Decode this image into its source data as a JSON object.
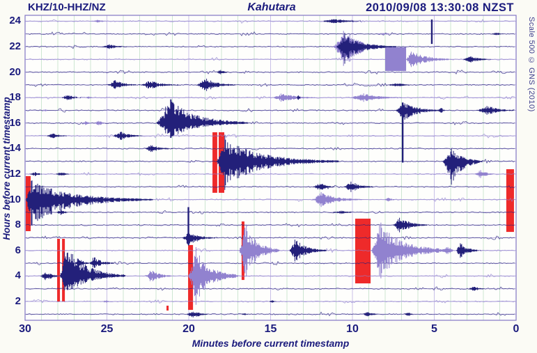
{
  "header": {
    "station": "KHZ/10-HHZ/NZ",
    "location": "Kahutara",
    "timestamp": "2010/09/08 13:30:08 NZST"
  },
  "scale_label": "Scale 500 © GNS (2010)",
  "axes": {
    "x_label": "Minutes before current timestamp",
    "y_label": "Hours before current timestamp",
    "x_ticks": [
      30,
      25,
      20,
      15,
      10,
      5,
      0
    ],
    "y_ticks": [
      24,
      22,
      20,
      18,
      16,
      14,
      12,
      10,
      8,
      6,
      4,
      2
    ],
    "x_range": [
      30,
      0
    ],
    "y_range": [
      0.5,
      24.6
    ],
    "grid": "on"
  },
  "colors": {
    "text_navy": "#1b1b7d",
    "trace_navy": "#23207a",
    "trace_purple": "#9182cf",
    "grid_horizontal": "#b9addf",
    "grid_minute": "#cde6d2",
    "grid_five_minute": "#c9c0e8",
    "plot_border": "#8176c4",
    "clip_red": "#ee2a2a",
    "background": "#fbfbf5",
    "plot_background": "#fefefc"
  },
  "chart_data": {
    "type": "line",
    "subtype": "helicorder-drum-plot",
    "title": "KHZ/10-HHZ/NZ Kahutara 2010/09/08 13:30:08 NZST",
    "xlabel": "Minutes before current timestamp",
    "ylabel": "Hours before current timestamp",
    "rows_hours": 24,
    "minutes_per_row": 30,
    "purple_noise_rows": [
      2,
      4,
      6,
      10,
      12,
      15,
      18,
      21,
      24
    ],
    "events": [
      {
        "r": 24,
        "m": 25.6,
        "w": 0.6,
        "a": 2,
        "c": "p"
      },
      {
        "r": 24,
        "m": 11.1,
        "w": 1.1,
        "a": 3.5,
        "c": "n",
        "t": 0.8
      },
      {
        "r": 23,
        "m": 8.1,
        "w": 0.7,
        "a": 1.5,
        "c": "p"
      },
      {
        "r": 23,
        "m": 5.15,
        "w": 0.07,
        "a": 18,
        "c": "n",
        "bar": true,
        "up": 1.15,
        "dn": 0.8
      },
      {
        "r": 23,
        "m": 1.2,
        "w": 0.5,
        "a": 2,
        "c": "n"
      },
      {
        "r": 22,
        "m": 24.9,
        "w": 0.5,
        "a": 4,
        "c": "n",
        "t": 0.9
      },
      {
        "r": 22,
        "m": 10.47,
        "w": 0.8,
        "a": 30,
        "c": "p",
        "t": 1.2,
        "up": 0.9,
        "dn": 1.1
      },
      {
        "r": 22,
        "m": 10.47,
        "w": 0.55,
        "a": 24,
        "c": "n",
        "t": 2.6,
        "up": 0.85,
        "dn": 1.05
      },
      {
        "r": 21,
        "m": 6.4,
        "w": 0.35,
        "a": 16,
        "c": "p",
        "t": 2.3
      },
      {
        "r": 21,
        "m": 2.8,
        "w": 0.6,
        "a": 5,
        "c": "n",
        "t": 0.9
      },
      {
        "r": 20,
        "m": 18.1,
        "w": 0.25,
        "a": 4,
        "c": "n",
        "t": 0.4
      },
      {
        "r": 19,
        "m": 24.5,
        "w": 0.55,
        "a": 6,
        "c": "n",
        "t": 1.1,
        "up": 1.2
      },
      {
        "r": 19,
        "m": 22.4,
        "w": 0.6,
        "a": 7,
        "c": "n",
        "t": 1.3
      },
      {
        "r": 19,
        "m": 19.0,
        "w": 0.55,
        "a": 12,
        "c": "n",
        "t": 1.3
      },
      {
        "r": 19,
        "m": 7.3,
        "w": 0.8,
        "a": 2.5,
        "c": "n"
      },
      {
        "r": 18,
        "m": 27.4,
        "w": 0.45,
        "a": 4,
        "c": "n",
        "t": 0.6
      },
      {
        "r": 18,
        "m": 26.1,
        "w": 0.3,
        "a": 2,
        "c": "p"
      },
      {
        "r": 18,
        "m": 14.3,
        "w": 0.7,
        "a": 7,
        "c": "p",
        "t": 1.5
      },
      {
        "r": 18,
        "m": 13.3,
        "w": 0.12,
        "a": 5,
        "c": "n"
      },
      {
        "r": 18,
        "m": 9.4,
        "w": 0.85,
        "a": 7,
        "c": "p",
        "t": 1.7
      },
      {
        "r": 17,
        "m": 28.8,
        "w": 0.3,
        "a": 2,
        "c": "p"
      },
      {
        "r": 17,
        "m": 6.9,
        "w": 0.5,
        "a": 16,
        "c": "n",
        "t": 1.9,
        "up": 0.9,
        "dn": 1.2
      },
      {
        "r": 17,
        "m": 6.93,
        "w": 0.05,
        "a": 75,
        "c": "n",
        "bar": true,
        "up": 0.15,
        "dn": 1.0
      },
      {
        "r": 17,
        "m": 4.6,
        "w": 0.25,
        "a": 4,
        "c": "n"
      },
      {
        "r": 17,
        "m": 1.75,
        "w": 0.8,
        "a": 7,
        "c": "n",
        "t": 0.9
      },
      {
        "r": 16,
        "m": 26.3,
        "w": 0.35,
        "a": 3,
        "c": "p"
      },
      {
        "r": 16,
        "m": 25.5,
        "w": 0.4,
        "a": 3.5,
        "c": "p"
      },
      {
        "r": 16,
        "m": 21.2,
        "w": 0.85,
        "a": 33,
        "c": "n",
        "t": 4.0,
        "up": 1.2,
        "dn": 0.75
      },
      {
        "r": 15,
        "m": 28.3,
        "w": 0.5,
        "a": 4,
        "c": "n",
        "t": 0.5
      },
      {
        "r": 15,
        "m": 24.2,
        "w": 0.5,
        "a": 7,
        "c": "n",
        "t": 1.0
      },
      {
        "r": 14,
        "m": 22.3,
        "w": 0.45,
        "a": 6,
        "c": "n",
        "t": 1.1
      },
      {
        "r": 13,
        "m": 17.8,
        "w": 0.55,
        "a": 42,
        "c": "n",
        "t": 6.4,
        "up": 0.95,
        "dn": 1.05
      },
      {
        "r": 13,
        "m": 3.95,
        "w": 0.6,
        "a": 27,
        "c": "n",
        "t": 1.3,
        "up": 0.7,
        "dn": 1.3
      },
      {
        "r": 12,
        "m": 29.4,
        "w": 0.45,
        "a": 3,
        "c": "n"
      },
      {
        "r": 12,
        "m": 27.8,
        "w": 0.45,
        "a": 3,
        "c": "n"
      },
      {
        "r": 12,
        "m": 2.2,
        "w": 0.35,
        "a": 7,
        "c": "p",
        "t": 0.6
      },
      {
        "r": 11,
        "m": 12.0,
        "w": 0.5,
        "a": 6,
        "c": "n",
        "t": 0.4
      },
      {
        "r": 11,
        "m": 10.1,
        "w": 0.5,
        "a": 9,
        "c": "n",
        "t": 0.9
      },
      {
        "r": 10,
        "m": 29.6,
        "w": 0.4,
        "a": 40,
        "c": "n",
        "t": 7.0,
        "up": 0.85,
        "dn": 1.15
      },
      {
        "r": 10,
        "m": 11.9,
        "w": 0.65,
        "a": 12,
        "c": "p",
        "t": 1.9
      },
      {
        "r": 10,
        "m": 7.8,
        "w": 0.35,
        "a": 3,
        "c": "p"
      },
      {
        "r": 9,
        "m": 27.8,
        "w": 0.4,
        "a": 4,
        "c": "n"
      },
      {
        "r": 9,
        "m": 10.7,
        "w": 0.8,
        "a": 2.5,
        "c": "n"
      },
      {
        "r": 8,
        "m": 7.1,
        "w": 0.45,
        "a": 14,
        "c": "n",
        "t": 1.2
      },
      {
        "r": 7,
        "m": 20.0,
        "w": 0.45,
        "a": 11,
        "c": "n",
        "t": 1.3,
        "up": 0.8,
        "dn": 1.2
      },
      {
        "r": 7,
        "m": 20.02,
        "w": 0.05,
        "a": 44,
        "c": "n",
        "bar": true,
        "up": 1,
        "dn": 0.12
      },
      {
        "r": 6,
        "m": 16.55,
        "w": 0.4,
        "a": 44,
        "c": "p",
        "t": 1.7
      },
      {
        "r": 6,
        "m": 13.5,
        "w": 0.4,
        "a": 20,
        "c": "n",
        "t": 1.5
      },
      {
        "r": 6,
        "m": 8.3,
        "w": 0.6,
        "a": 44,
        "c": "p",
        "t": 3.8
      },
      {
        "r": 6,
        "m": 4.2,
        "w": 0.35,
        "a": 7,
        "c": "p"
      },
      {
        "r": 6,
        "m": 3.4,
        "w": 0.35,
        "a": 12,
        "c": "n",
        "t": 0.9
      },
      {
        "r": 5,
        "m": 26.7,
        "w": 0.3,
        "a": 7,
        "c": "n",
        "t": 0.3,
        "up": 1.3
      },
      {
        "r": 5,
        "m": 25.8,
        "w": 0.35,
        "a": 8,
        "c": "n",
        "t": 1.1,
        "up": 1.3
      },
      {
        "r": 4,
        "m": 28.7,
        "w": 0.45,
        "a": 7,
        "c": "n",
        "t": 0.3,
        "dn": 1.2
      },
      {
        "r": 4,
        "m": 27.5,
        "w": 0.4,
        "a": 45,
        "c": "n",
        "t": 3.2,
        "up": 1.25,
        "dn": 0.75
      },
      {
        "r": 4,
        "m": 22.3,
        "w": 0.4,
        "a": 10,
        "c": "p",
        "t": 1.0
      },
      {
        "r": 4,
        "m": 19.57,
        "w": 0.5,
        "a": 46,
        "c": "p",
        "t": 2.1
      },
      {
        "r": 3,
        "m": 2.6,
        "w": 0.4,
        "a": 4,
        "c": "n",
        "t": 0.4
      },
      {
        "r": 2,
        "m": 25.1,
        "w": 0.35,
        "a": 2,
        "c": "p"
      },
      {
        "r": 2,
        "m": 14.9,
        "w": 0.3,
        "a": 2,
        "c": "n"
      },
      {
        "r": 1,
        "m": 19.8,
        "w": 0.4,
        "a": 6,
        "c": "n",
        "t": 0.7,
        "dn": 1.3
      },
      {
        "r": 1,
        "m": 16.6,
        "w": 0.25,
        "a": 2,
        "c": "n"
      },
      {
        "r": 1,
        "m": 9.1,
        "w": 0.35,
        "a": 4,
        "c": "n",
        "t": 0.5
      },
      {
        "r": 1,
        "m": 6.6,
        "w": 0.3,
        "a": 3,
        "c": "n"
      }
    ],
    "clip_rects": [
      {
        "m1": 29.96,
        "m2": 29.66,
        "h_top": 11.84,
        "h_bot": 7.52,
        "color": "red"
      },
      {
        "m1": 28.04,
        "m2": 27.87,
        "h_top": 6.92,
        "h_bot": 2.0,
        "color": "red"
      },
      {
        "m1": 27.74,
        "m2": 27.57,
        "h_top": 6.92,
        "h_bot": 2.0,
        "color": "red"
      },
      {
        "m1": 20.04,
        "m2": 19.74,
        "h_top": 6.43,
        "h_bot": 1.34,
        "color": "red"
      },
      {
        "m1": 18.55,
        "m2": 18.26,
        "h_top": 15.28,
        "h_bot": 10.53,
        "color": "red"
      },
      {
        "m1": 18.17,
        "m2": 17.83,
        "h_top": 15.28,
        "h_bot": 10.53,
        "color": "red"
      },
      {
        "m1": 16.77,
        "m2": 16.6,
        "h_top": 8.28,
        "h_bot": 3.69,
        "color": "red"
      },
      {
        "m1": 9.83,
        "m2": 8.89,
        "h_top": 8.5,
        "h_bot": 3.42,
        "color": "red"
      },
      {
        "m1": 0.6,
        "m2": 0.13,
        "h_top": 12.38,
        "h_bot": 7.46,
        "color": "red"
      },
      {
        "m1": 21.36,
        "m2": 21.23,
        "h_top": 1.67,
        "h_bot": 1.29,
        "color": "red"
      },
      {
        "m1": 8.0,
        "m2": 6.72,
        "h_top": 21.95,
        "h_bot": 20.09,
        "color": "purple"
      }
    ]
  }
}
